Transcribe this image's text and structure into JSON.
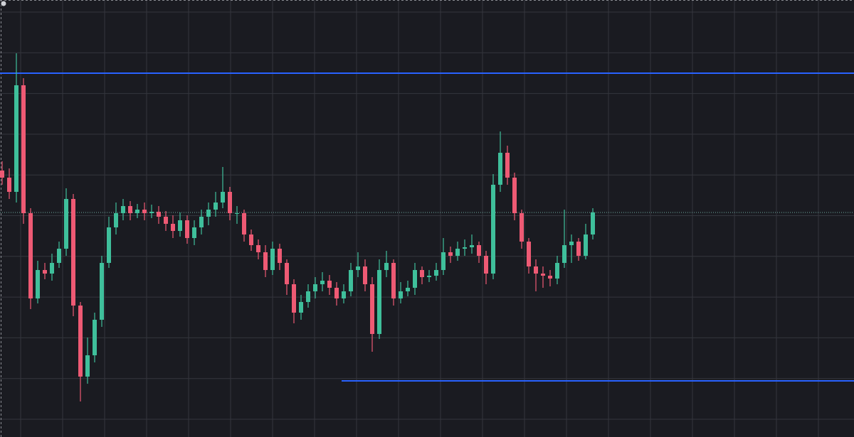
{
  "chart_data": {
    "type": "candlestick",
    "ylim": [
      0,
      615
    ],
    "up_color": "#3fbf9b",
    "down_color": "#ee5a74",
    "open": [
      375,
      365,
      345,
      495,
      315,
      195,
      235,
      230,
      245,
      265,
      335,
      185,
      85,
      115,
      165,
      245,
      295,
      315,
      325,
      315,
      320,
      315,
      317,
      310,
      300,
      290,
      305,
      280,
      295,
      310,
      320,
      330,
      345,
      315,
      315,
      285,
      270,
      260,
      235,
      265,
      245,
      215,
      175,
      190,
      205,
      215,
      220,
      210,
      195,
      205,
      235,
      240,
      215,
      145,
      235,
      245,
      195,
      205,
      210,
      235,
      225,
      227,
      235,
      260,
      255,
      265,
      267,
      270,
      255,
      230,
      355,
      400,
      365,
      315,
      275,
      240,
      230,
      227,
      223,
      245,
      270,
      275,
      255,
      285
    ],
    "high": [
      388,
      378,
      540,
      505,
      322,
      248,
      245,
      258,
      275,
      350,
      342,
      190,
      140,
      175,
      255,
      310,
      330,
      335,
      332,
      328,
      330,
      327,
      325,
      318,
      312,
      316,
      312,
      305,
      320,
      330,
      345,
      380,
      352,
      325,
      320,
      292,
      278,
      270,
      275,
      272,
      250,
      222,
      200,
      215,
      225,
      232,
      228,
      218,
      215,
      245,
      260,
      250,
      225,
      250,
      262,
      250,
      218,
      220,
      245,
      240,
      235,
      245,
      280,
      268,
      275,
      278,
      285,
      275,
      262,
      370,
      430,
      410,
      372,
      320,
      280,
      250,
      240,
      235,
      255,
      320,
      285,
      280,
      300,
      322
    ],
    "low": [
      355,
      335,
      330,
      300,
      180,
      188,
      222,
      220,
      238,
      255,
      170,
      50,
      75,
      105,
      155,
      238,
      285,
      305,
      305,
      308,
      305,
      308,
      300,
      290,
      280,
      282,
      272,
      270,
      285,
      298,
      310,
      322,
      305,
      300,
      275,
      262,
      250,
      225,
      228,
      235,
      200,
      160,
      165,
      182,
      195,
      205,
      200,
      185,
      188,
      198,
      225,
      205,
      120,
      138,
      225,
      185,
      188,
      198,
      200,
      215,
      218,
      220,
      228,
      245,
      248,
      255,
      258,
      245,
      215,
      222,
      345,
      355,
      305,
      265,
      230,
      205,
      210,
      212,
      215,
      238,
      245,
      248,
      250,
      278
    ],
    "close": [
      365,
      345,
      495,
      315,
      195,
      235,
      230,
      245,
      265,
      335,
      185,
      85,
      115,
      165,
      245,
      295,
      315,
      325,
      315,
      320,
      315,
      317,
      310,
      300,
      290,
      305,
      280,
      295,
      310,
      320,
      330,
      345,
      315,
      315,
      285,
      270,
      260,
      235,
      265,
      245,
      215,
      175,
      190,
      205,
      215,
      220,
      210,
      195,
      205,
      235,
      240,
      215,
      145,
      235,
      245,
      195,
      205,
      210,
      235,
      225,
      227,
      235,
      260,
      255,
      265,
      267,
      270,
      255,
      230,
      355,
      400,
      365,
      315,
      275,
      240,
      230,
      227,
      223,
      245,
      270,
      275,
      255,
      285,
      316
    ],
    "levels": [
      {
        "value": 512,
        "color": "#2962ff"
      },
      {
        "value": 79,
        "color": "#2962ff"
      }
    ]
  }
}
